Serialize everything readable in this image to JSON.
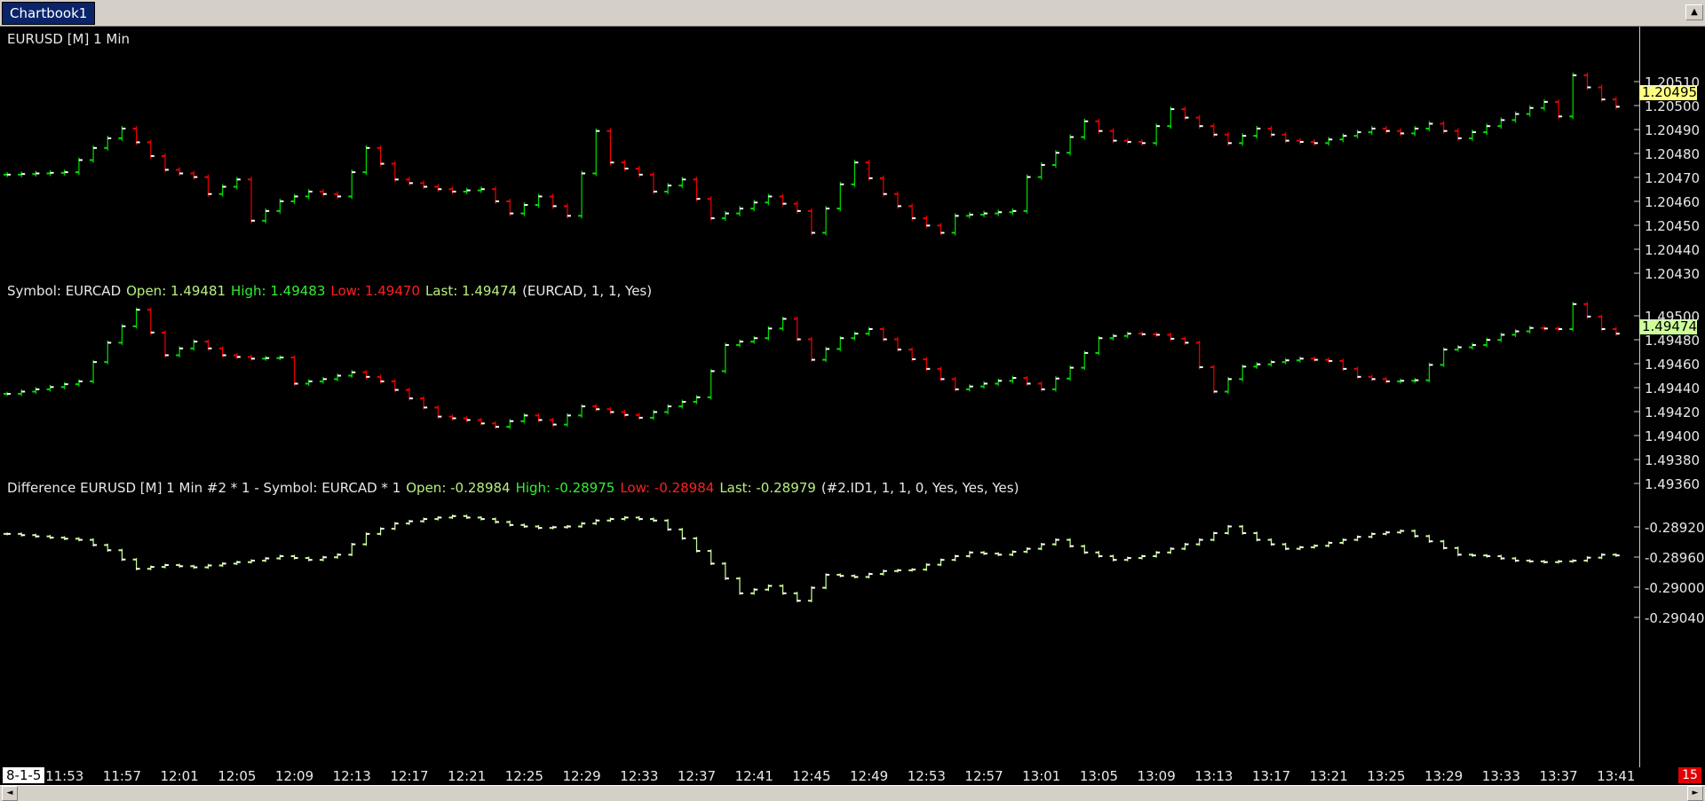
{
  "tabs": [
    {
      "label": "Chartbook1"
    }
  ],
  "colors": {
    "up": "#00dd00",
    "down": "#ee0000",
    "diff": "#ccff99",
    "background": "#000000",
    "tag_eurusd": "#ffff80",
    "tag_eurcad": "#ccff99"
  },
  "panes": [
    {
      "header": [
        {
          "text": "EURUSD [M]  1 Min",
          "color": "white"
        }
      ],
      "axis_labels": [
        "1.20510",
        "1.20500",
        "1.20490",
        "1.20480",
        "1.20470",
        "1.20460",
        "1.20450",
        "1.20440",
        "1.20430"
      ],
      "last_value": "1.20495"
    },
    {
      "header": [
        {
          "text": "Symbol: EURCAD",
          "color": "white"
        },
        {
          "text": "Open: 1.49481",
          "color": "lime"
        },
        {
          "text": "High: 1.49483",
          "color": "green"
        },
        {
          "text": "Low: 1.49470",
          "color": "red"
        },
        {
          "text": "Last: 1.49474",
          "color": "lime"
        },
        {
          "text": "(EURCAD, 1, 1, Yes)",
          "color": "white"
        }
      ],
      "axis_labels": [
        "1.49500",
        "1.49480",
        "1.49460",
        "1.49440",
        "1.49420",
        "1.49400",
        "1.49380",
        "1.49360"
      ],
      "last_value": "1.49474"
    },
    {
      "header": [
        {
          "text": "Difference EURUSD [M]  1 Min   #2 * 1 - Symbol: EURCAD * 1",
          "color": "white"
        },
        {
          "text": "Open: -0.28984",
          "color": "lime"
        },
        {
          "text": "High: -0.28975",
          "color": "green"
        },
        {
          "text": "Low: -0.28984",
          "color": "red"
        },
        {
          "text": "Last: -0.28979",
          "color": "lime"
        },
        {
          "text": "(#2.ID1, 1, 1, 0, Yes, Yes, Yes)",
          "color": "white"
        }
      ],
      "axis_labels": [
        "-0.28920",
        "-0.28960",
        "-0.29000",
        "-0.29040"
      ]
    }
  ],
  "time_axis": {
    "date_label": "8-1-5",
    "labels": [
      "11:53",
      "11:57",
      "12:01",
      "12:05",
      "12:09",
      "12:13",
      "12:17",
      "12:21",
      "12:25",
      "12:29",
      "12:33",
      "12:37",
      "12:41",
      "12:45",
      "12:49",
      "12:53",
      "12:57",
      "13:01",
      "13:05",
      "13:09",
      "13:13",
      "13:17",
      "13:21",
      "13:25",
      "13:29",
      "13:33",
      "13:37",
      "13:41"
    ]
  },
  "corner_badge": "15",
  "chart_data": [
    {
      "type": "ohlc",
      "symbol": "EURUSD",
      "timeframe": "1 Min",
      "ylim": [
        1.2043,
        1.2052
      ],
      "x_start": "11:49",
      "x_end": "13:42",
      "close_path": [
        [
          "11:49",
          1.20467
        ],
        [
          "11:53",
          1.20468
        ],
        [
          "11:55",
          1.20478
        ],
        [
          "11:57",
          1.20486
        ],
        [
          "12:00",
          1.20469
        ],
        [
          "12:02",
          1.20466
        ],
        [
          "12:03",
          1.20459
        ],
        [
          "12:05",
          1.20465
        ],
        [
          "12:06",
          1.20448
        ],
        [
          "12:08",
          1.20456
        ],
        [
          "12:10",
          1.2046
        ],
        [
          "12:12",
          1.20458
        ],
        [
          "12:14",
          1.20478
        ],
        [
          "12:16",
          1.20465
        ],
        [
          "12:18",
          1.20462
        ],
        [
          "12:20",
          1.2046
        ],
        [
          "12:22",
          1.20461
        ],
        [
          "12:24",
          1.20451
        ],
        [
          "12:26",
          1.20458
        ],
        [
          "12:28",
          1.2045
        ],
        [
          "12:30",
          1.20485
        ],
        [
          "12:31",
          1.20472
        ],
        [
          "12:33",
          1.20467
        ],
        [
          "12:34",
          1.2046
        ],
        [
          "12:36",
          1.20465
        ],
        [
          "12:38",
          1.20449
        ],
        [
          "12:40",
          1.20453
        ],
        [
          "12:42",
          1.20458
        ],
        [
          "12:44",
          1.20452
        ],
        [
          "12:45",
          1.20443
        ],
        [
          "12:47",
          1.20463
        ],
        [
          "12:48",
          1.20472
        ],
        [
          "12:50",
          1.20459
        ],
        [
          "12:52",
          1.20449
        ],
        [
          "12:54",
          1.20443
        ],
        [
          "12:55",
          1.2045
        ],
        [
          "12:57",
          1.20451
        ],
        [
          "12:59",
          1.20452
        ],
        [
          "13:00",
          1.20466
        ],
        [
          "13:02",
          1.20476
        ],
        [
          "13:04",
          1.20489
        ],
        [
          "13:06",
          1.20481
        ],
        [
          "13:08",
          1.2048
        ],
        [
          "13:10",
          1.20494
        ],
        [
          "13:12",
          1.20487
        ],
        [
          "13:14",
          1.2048
        ],
        [
          "13:16",
          1.20486
        ],
        [
          "13:18",
          1.20481
        ],
        [
          "13:20",
          1.2048
        ],
        [
          "13:22",
          1.20483
        ],
        [
          "13:24",
          1.20486
        ],
        [
          "13:26",
          1.20484
        ],
        [
          "13:28",
          1.20488
        ],
        [
          "13:30",
          1.20482
        ],
        [
          "13:32",
          1.20487
        ],
        [
          "13:34",
          1.20492
        ],
        [
          "13:36",
          1.20497
        ],
        [
          "13:37",
          1.20491
        ],
        [
          "13:38",
          1.20508
        ],
        [
          "13:40",
          1.20498
        ],
        [
          "13:41",
          1.20495
        ]
      ],
      "last": 1.20495
    },
    {
      "type": "ohlc",
      "symbol": "EURCAD",
      "ylim": [
        1.4935,
        1.4951
      ],
      "open": 1.49481,
      "high": 1.49483,
      "low": 1.4947,
      "last": 1.49474,
      "close_path": [
        [
          "11:49",
          1.49421
        ],
        [
          "11:52",
          1.49427
        ],
        [
          "11:54",
          1.49432
        ],
        [
          "11:56",
          1.49466
        ],
        [
          "11:58",
          1.49495
        ],
        [
          "12:00",
          1.49455
        ],
        [
          "12:02",
          1.49467
        ],
        [
          "12:04",
          1.49455
        ],
        [
          "12:06",
          1.49452
        ],
        [
          "12:08",
          1.49453
        ],
        [
          "12:09",
          1.4943
        ],
        [
          "12:11",
          1.49434
        ],
        [
          "12:13",
          1.4944
        ],
        [
          "12:15",
          1.49432
        ],
        [
          "12:17",
          1.49417
        ],
        [
          "12:19",
          1.49401
        ],
        [
          "12:21",
          1.49398
        ],
        [
          "12:23",
          1.49392
        ],
        [
          "12:25",
          1.49402
        ],
        [
          "12:27",
          1.49394
        ],
        [
          "12:29",
          1.4941
        ],
        [
          "12:31",
          1.49405
        ],
        [
          "12:33",
          1.494
        ],
        [
          "12:35",
          1.4941
        ],
        [
          "12:37",
          1.49418
        ],
        [
          "12:39",
          1.49464
        ],
        [
          "12:41",
          1.4947
        ],
        [
          "12:43",
          1.49487
        ],
        [
          "12:45",
          1.49451
        ],
        [
          "12:47",
          1.4947
        ],
        [
          "12:49",
          1.49478
        ],
        [
          "12:51",
          1.4946
        ],
        [
          "12:53",
          1.49443
        ],
        [
          "12:55",
          1.49425
        ],
        [
          "12:57",
          1.4943
        ],
        [
          "12:59",
          1.49435
        ],
        [
          "13:01",
          1.49425
        ],
        [
          "13:03",
          1.49444
        ],
        [
          "13:05",
          1.4947
        ],
        [
          "13:07",
          1.49474
        ],
        [
          "13:09",
          1.49473
        ],
        [
          "13:11",
          1.49466
        ],
        [
          "13:13",
          1.49423
        ],
        [
          "13:15",
          1.49445
        ],
        [
          "13:17",
          1.49449
        ],
        [
          "13:19",
          1.49452
        ],
        [
          "13:21",
          1.4945
        ],
        [
          "13:23",
          1.49436
        ],
        [
          "13:25",
          1.49432
        ],
        [
          "13:27",
          1.49433
        ],
        [
          "13:29",
          1.4946
        ],
        [
          "13:31",
          1.49464
        ],
        [
          "13:33",
          1.49473
        ],
        [
          "13:35",
          1.49479
        ],
        [
          "13:37",
          1.49478
        ],
        [
          "13:38",
          1.495
        ],
        [
          "13:40",
          1.49478
        ],
        [
          "13:41",
          1.49474
        ]
      ]
    },
    {
      "type": "line",
      "name": "Difference EURUSD [M]  1 Min   #2 * 1 - Symbol: EURCAD * 1",
      "ylim": [
        -0.2906,
        -0.289
      ],
      "open": -0.28984,
      "high": -0.28975,
      "low": -0.28984,
      "last": -0.28979,
      "close_path": [
        [
          "11:49",
          -0.2895
        ],
        [
          "11:52",
          -0.28955
        ],
        [
          "11:54",
          -0.28958
        ],
        [
          "11:56",
          -0.28972
        ],
        [
          "11:58",
          -0.28997
        ],
        [
          "12:00",
          -0.28992
        ],
        [
          "12:02",
          -0.28995
        ],
        [
          "12:04",
          -0.2899
        ],
        [
          "12:06",
          -0.28986
        ],
        [
          "12:08",
          -0.2898
        ],
        [
          "12:10",
          -0.28985
        ],
        [
          "12:12",
          -0.28978
        ],
        [
          "12:14",
          -0.2895
        ],
        [
          "12:16",
          -0.28936
        ],
        [
          "12:18",
          -0.2893
        ],
        [
          "12:20",
          -0.28926
        ],
        [
          "12:22",
          -0.2893
        ],
        [
          "12:24",
          -0.28938
        ],
        [
          "12:26",
          -0.28942
        ],
        [
          "12:28",
          -0.2894
        ],
        [
          "12:30",
          -0.28932
        ],
        [
          "12:32",
          -0.28928
        ],
        [
          "12:34",
          -0.28932
        ],
        [
          "12:36",
          -0.28956
        ],
        [
          "12:38",
          -0.2899
        ],
        [
          "12:40",
          -0.2903
        ],
        [
          "12:42",
          -0.2902
        ],
        [
          "12:44",
          -0.2904
        ],
        [
          "12:46",
          -0.29005
        ],
        [
          "12:48",
          -0.29008
        ],
        [
          "12:50",
          -0.29
        ],
        [
          "12:52",
          -0.28998
        ],
        [
          "12:54",
          -0.28985
        ],
        [
          "12:56",
          -0.28975
        ],
        [
          "12:58",
          -0.28978
        ],
        [
          "13:00",
          -0.2897
        ],
        [
          "13:02",
          -0.28958
        ],
        [
          "13:04",
          -0.28975
        ],
        [
          "13:06",
          -0.28985
        ],
        [
          "13:08",
          -0.2898
        ],
        [
          "13:10",
          -0.2897
        ],
        [
          "13:12",
          -0.28958
        ],
        [
          "13:14",
          -0.2894
        ],
        [
          "13:16",
          -0.28958
        ],
        [
          "13:18",
          -0.2897
        ],
        [
          "13:20",
          -0.28966
        ],
        [
          "13:22",
          -0.28958
        ],
        [
          "13:24",
          -0.2895
        ],
        [
          "13:26",
          -0.28946
        ],
        [
          "13:28",
          -0.2896
        ],
        [
          "13:30",
          -0.28978
        ],
        [
          "13:32",
          -0.2898
        ],
        [
          "13:34",
          -0.28986
        ],
        [
          "13:36",
          -0.28988
        ],
        [
          "13:38",
          -0.28986
        ],
        [
          "13:40",
          -0.28978
        ],
        [
          "13:41",
          -0.28979
        ]
      ]
    }
  ]
}
